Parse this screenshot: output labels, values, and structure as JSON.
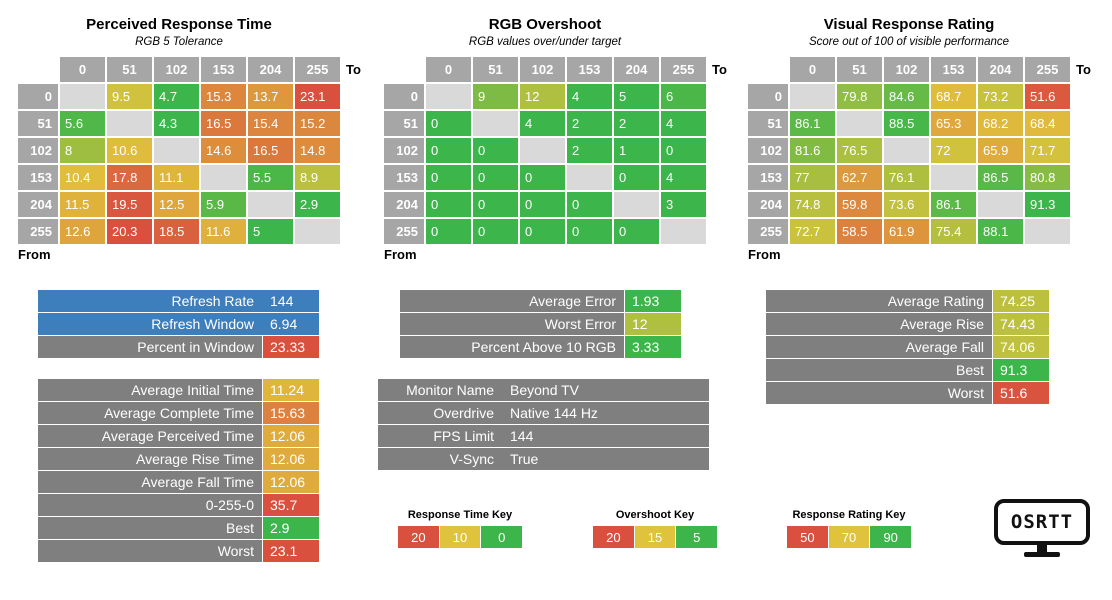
{
  "scales": {
    "time": {
      "stops": [
        [
          5,
          "#3cb64a"
        ],
        [
          10,
          "#e0c33c"
        ],
        [
          20,
          "#d9503f"
        ]
      ]
    },
    "overshoot": {
      "stops": [
        [
          5,
          "#3cb64a"
        ],
        [
          15,
          "#e0c33c"
        ],
        [
          20,
          "#d9503f"
        ]
      ]
    },
    "rating": {
      "stops": [
        [
          50,
          "#d9503f"
        ],
        [
          70,
          "#e0c33c"
        ],
        [
          90,
          "#3cb64a"
        ]
      ]
    }
  },
  "chart_data": [
    {
      "type": "heatmap",
      "title": "Perceived Response Time",
      "subtitle": "RGB 5 Tolerance",
      "x_axis_label": "To",
      "y_axis_label": "From",
      "categories": [
        "0",
        "51",
        "102",
        "153",
        "204",
        "255"
      ],
      "scale": "time",
      "rows": [
        [
          null,
          9.5,
          4.7,
          15.3,
          13.7,
          23.1
        ],
        [
          5.6,
          null,
          4.3,
          16.5,
          15.4,
          15.2
        ],
        [
          8,
          10.6,
          null,
          14.6,
          16.5,
          14.8
        ],
        [
          10.4,
          17.8,
          11.1,
          null,
          5.5,
          8.9
        ],
        [
          11.5,
          19.5,
          12.5,
          5.9,
          null,
          2.9
        ],
        [
          12.6,
          20.3,
          18.5,
          11.6,
          5,
          null
        ]
      ]
    },
    {
      "type": "heatmap",
      "title": "RGB Overshoot",
      "subtitle": "RGB values over/under target",
      "x_axis_label": "To",
      "y_axis_label": "From",
      "categories": [
        "0",
        "51",
        "102",
        "153",
        "204",
        "255"
      ],
      "scale": "overshoot",
      "rows": [
        [
          null,
          9,
          12,
          4,
          5,
          6
        ],
        [
          0,
          null,
          4,
          2,
          2,
          4
        ],
        [
          0,
          0,
          null,
          2,
          1,
          0
        ],
        [
          0,
          0,
          0,
          null,
          0,
          4
        ],
        [
          0,
          0,
          0,
          0,
          null,
          3
        ],
        [
          0,
          0,
          0,
          0,
          0,
          null
        ]
      ]
    },
    {
      "type": "heatmap",
      "title": "Visual Response Rating",
      "subtitle": "Score out of 100 of visible performance",
      "x_axis_label": "To",
      "y_axis_label": "From",
      "categories": [
        "0",
        "51",
        "102",
        "153",
        "204",
        "255"
      ],
      "scale": "rating",
      "rows": [
        [
          null,
          79.8,
          84.6,
          68.7,
          73.2,
          51.6
        ],
        [
          86.1,
          null,
          88.5,
          65.3,
          68.2,
          68.4
        ],
        [
          81.6,
          76.5,
          null,
          72,
          65.9,
          71.7
        ],
        [
          77,
          62.7,
          76.1,
          null,
          86.5,
          80.8
        ],
        [
          74.8,
          59.8,
          73.6,
          86.1,
          null,
          91.3
        ],
        [
          72.7,
          58.5,
          61.9,
          75.4,
          88.1,
          null
        ]
      ]
    }
  ],
  "panels": {
    "refresh": {
      "rows": [
        {
          "label": "Refresh Rate",
          "value": "144",
          "row_bg": "#3d7ebd"
        },
        {
          "label": "Refresh Window",
          "value": "6.94",
          "row_bg": "#3d7ebd"
        },
        {
          "label": "Percent in Window",
          "value": "23.33",
          "value_bg": "#d9503f"
        }
      ]
    },
    "times": {
      "rows": [
        {
          "label": "Average Initial Time",
          "value": "11.24",
          "value_bg": "#dfb53c"
        },
        {
          "label": "Average Complete Time",
          "value": "15.63",
          "value_bg": "#dc823e"
        },
        {
          "label": "Average Perceived Time",
          "value": "12.06",
          "value_bg": "#dfab3d"
        },
        {
          "label": "Average Rise Time",
          "value": "12.06",
          "value_bg": "#dfab3d"
        },
        {
          "label": "Average Fall Time",
          "value": "12.06",
          "value_bg": "#dfab3d"
        },
        {
          "label": "0-255-0",
          "value": "35.7",
          "value_bg": "#d9503f"
        },
        {
          "label": "Best",
          "value": "2.9",
          "value_bg": "#3cb64a"
        },
        {
          "label": "Worst",
          "value": "23.1",
          "value_bg": "#d9503f"
        }
      ]
    },
    "error": {
      "rows": [
        {
          "label": "Average Error",
          "value": "1.93",
          "value_bg": "#3cb64a"
        },
        {
          "label": "Worst Error",
          "value": "12",
          "value_bg": "#afbf40"
        },
        {
          "label": "Percent Above 10 RGB",
          "value": "3.33",
          "value_bg": "#3cb64a"
        }
      ]
    },
    "monitor": {
      "rows": [
        {
          "label": "Monitor Name",
          "value": "Beyond TV",
          "row_bg": "#7f7f7f"
        },
        {
          "label": "Overdrive",
          "value": "Native 144 Hz",
          "row_bg": "#7f7f7f"
        },
        {
          "label": "FPS Limit",
          "value": "144",
          "row_bg": "#7f7f7f"
        },
        {
          "label": "V-Sync",
          "value": "True",
          "row_bg": "#7f7f7f"
        }
      ]
    },
    "rating": {
      "rows": [
        {
          "label": "Average Rating",
          "value": "74.25",
          "value_bg": "#bdc03f"
        },
        {
          "label": "Average Rise",
          "value": "74.43",
          "value_bg": "#bcc03f"
        },
        {
          "label": "Average Fall",
          "value": "74.06",
          "value_bg": "#bfc03f"
        },
        {
          "label": "Best",
          "value": "91.3",
          "value_bg": "#3cb64a"
        },
        {
          "label": "Worst",
          "value": "51.6",
          "value_bg": "#d9543f"
        }
      ]
    }
  },
  "keys": [
    {
      "title": "Response Time Key",
      "cells": [
        {
          "label": "20",
          "bg": "#d9503f"
        },
        {
          "label": "10",
          "bg": "#e0c33c"
        },
        {
          "label": "0",
          "bg": "#3cb64a"
        }
      ]
    },
    {
      "title": "Overshoot Key",
      "cells": [
        {
          "label": "20",
          "bg": "#d9503f"
        },
        {
          "label": "15",
          "bg": "#e0c33c"
        },
        {
          "label": "5",
          "bg": "#3cb64a"
        }
      ]
    },
    {
      "title": "Response Rating Key",
      "cells": [
        {
          "label": "50",
          "bg": "#d9503f"
        },
        {
          "label": "70",
          "bg": "#e0c33c"
        },
        {
          "label": "90",
          "bg": "#3cb64a"
        }
      ]
    }
  ],
  "logo": {
    "text": "OSRTT"
  },
  "colors": {
    "header_gray": "#a6a6a6",
    "empty_cell": "#d9d9d9",
    "panel_gray": "#7f7f7f",
    "accent_blue": "#3d7ebd",
    "green": "#3cb64a",
    "yellow": "#e0c33c",
    "red": "#d9503f"
  }
}
